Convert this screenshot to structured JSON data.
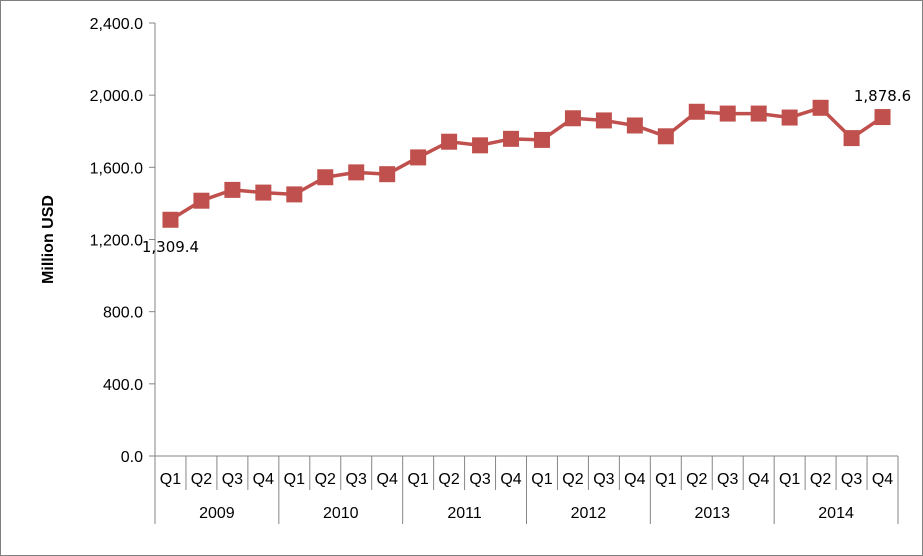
{
  "chart_data": {
    "type": "line",
    "ylabel": "Million USD",
    "ylim": [
      0,
      2400
    ],
    "yticks": [
      "0.0",
      "400.0",
      "800.0",
      "1,200.0",
      "1,600.0",
      "2,000.0",
      "2,400.0"
    ],
    "ytick_values": [
      0,
      400,
      800,
      1200,
      1600,
      2000,
      2400
    ],
    "years": [
      "2009",
      "2010",
      "2011",
      "2012",
      "2013",
      "2014"
    ],
    "quarters": [
      "Q1",
      "Q2",
      "Q3",
      "Q4"
    ],
    "categories": [
      "2009 Q1",
      "2009 Q2",
      "2009 Q3",
      "2009 Q4",
      "2010 Q1",
      "2010 Q2",
      "2010 Q3",
      "2010 Q4",
      "2011 Q1",
      "2011 Q2",
      "2011 Q3",
      "2011 Q4",
      "2012 Q1",
      "2012 Q2",
      "2012 Q3",
      "2012 Q4",
      "2013 Q1",
      "2013 Q2",
      "2013 Q3",
      "2013 Q4",
      "2014 Q1",
      "2014 Q2",
      "2014 Q3",
      "2014 Q4"
    ],
    "series": [
      {
        "values": [
          1309.4,
          1415,
          1475,
          1460,
          1450,
          1545,
          1572,
          1562,
          1655,
          1742,
          1722,
          1758,
          1752,
          1872,
          1860,
          1832,
          1772,
          1908,
          1898,
          1898,
          1876,
          1930,
          1762,
          1878.6
        ],
        "color": "#c0504d"
      }
    ],
    "data_labels": [
      {
        "index": 0,
        "text": "1,309.4",
        "position": "below"
      },
      {
        "index": 23,
        "text": "1,878.6",
        "position": "above"
      }
    ],
    "grid": false,
    "legend": "none"
  }
}
